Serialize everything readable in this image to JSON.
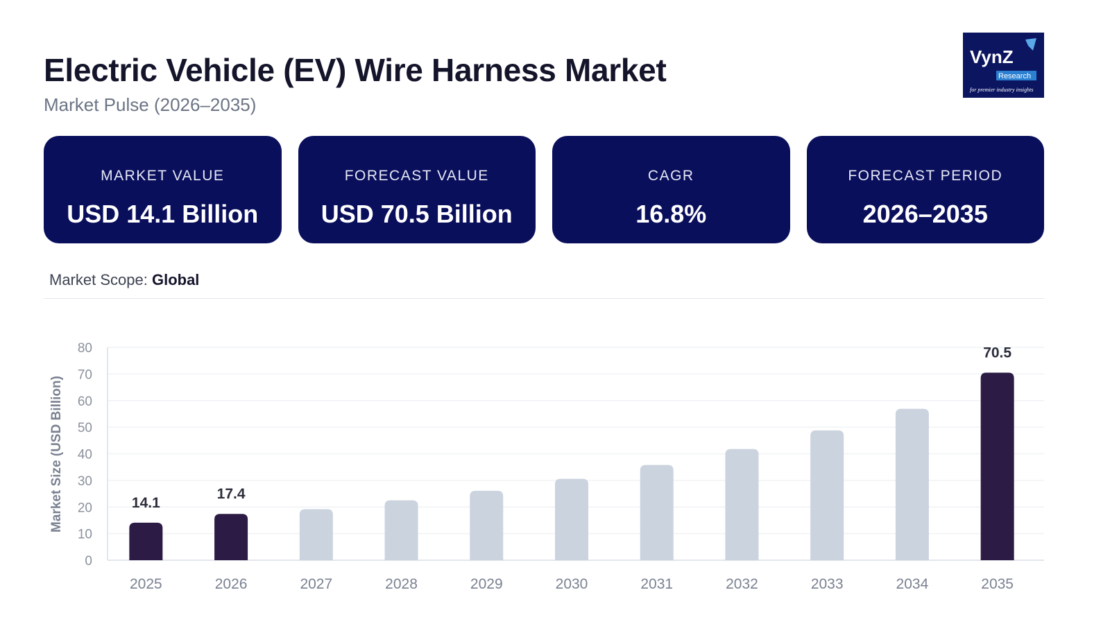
{
  "header": {
    "title": "Electric Vehicle (EV) Wire Harness Market",
    "subtitle": "Market Pulse (2026–2035)"
  },
  "logo": {
    "text": "VynZ Research",
    "tagline": "for premier industry insights"
  },
  "cards": [
    {
      "label": "MARKET VALUE",
      "value": "USD 14.1 Billion"
    },
    {
      "label": "FORECAST VALUE",
      "value": "USD 70.5 Billion"
    },
    {
      "label": "CAGR",
      "value": "16.8%"
    },
    {
      "label": "FORECAST PERIOD",
      "value": "2026–2035"
    }
  ],
  "scope": {
    "label": "Market Scope:",
    "value": "Global"
  },
  "colors": {
    "highlight": "#2b1b45",
    "muted": "#cbd3df",
    "card": "#0a0f5c"
  },
  "chart_data": {
    "type": "bar",
    "title": "",
    "xlabel": "",
    "ylabel": "Market Size (USD Billion)",
    "ylim": [
      0,
      80
    ],
    "yticks": [
      0,
      10,
      20,
      30,
      40,
      50,
      60,
      70,
      80
    ],
    "grid": true,
    "categories": [
      "2025",
      "2026",
      "2027",
      "2028",
      "2029",
      "2030",
      "2031",
      "2032",
      "2033",
      "2034",
      "2035"
    ],
    "values": [
      14.1,
      17.4,
      19.2,
      22.5,
      26.1,
      30.6,
      35.8,
      41.8,
      48.8,
      56.9,
      70.5
    ],
    "highlighted": [
      "2025",
      "2026",
      "2035"
    ],
    "data_labels": {
      "2025": "14.1",
      "2026": "17.4",
      "2035": "70.5"
    }
  }
}
